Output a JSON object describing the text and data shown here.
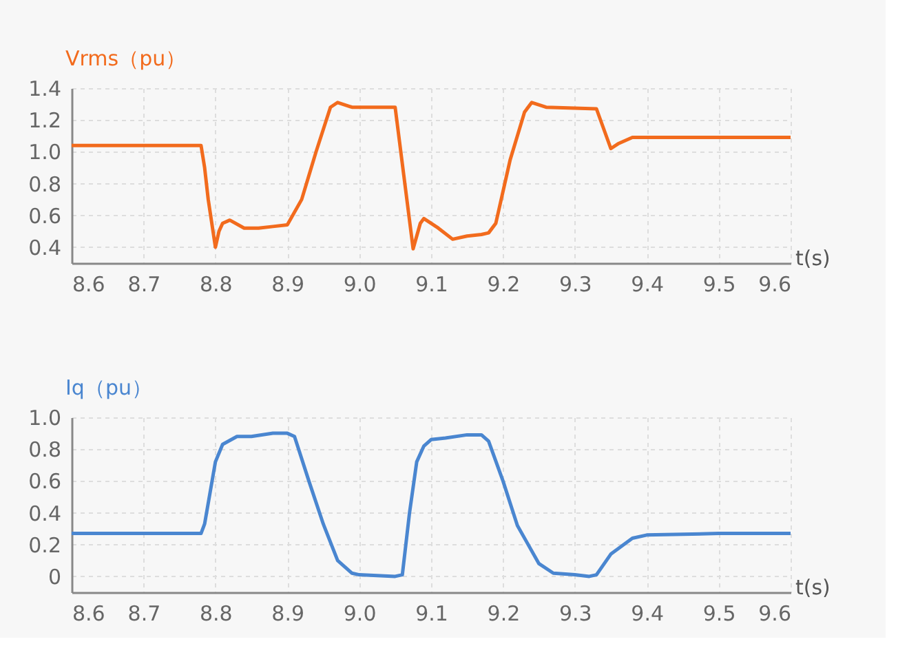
{
  "chart_data": [
    {
      "type": "line",
      "ylabel": "Vrms（pu）",
      "xlabel": "t(s)",
      "xlim": [
        8.6,
        9.6
      ],
      "xticks": [
        {
          "value": 8.6,
          "label": "8.6"
        },
        {
          "value": 8.7,
          "label": "8.7"
        },
        {
          "value": 8.8,
          "label": "8.8"
        },
        {
          "value": 8.9,
          "label": "8.9"
        },
        {
          "value": 9.0,
          "label": "9.0"
        },
        {
          "value": 9.1,
          "label": "9.1"
        },
        {
          "value": 9.2,
          "label": "9.2"
        },
        {
          "value": 9.3,
          "label": "9.3"
        },
        {
          "value": 9.4,
          "label": "9.4"
        },
        {
          "value": 9.5,
          "label": "9.5"
        },
        {
          "value": 9.6,
          "label": "9.6"
        }
      ],
      "ylim": [
        0.3,
        1.4
      ],
      "yticks": [
        {
          "value": 0.4,
          "label": "0.4"
        },
        {
          "value": 0.6,
          "label": "0.6"
        },
        {
          "value": 0.8,
          "label": "0.8"
        },
        {
          "value": 1.0,
          "label": "1.0"
        },
        {
          "value": 1.2,
          "label": "1.2"
        },
        {
          "value": 1.4,
          "label": "1.4"
        }
      ],
      "grid": true,
      "line_style": "solid",
      "marker": "none",
      "series": [
        {
          "color": "#f26b1d",
          "x": [
            8.6,
            8.78,
            8.785,
            8.79,
            8.8,
            8.805,
            8.81,
            8.82,
            8.84,
            8.86,
            8.88,
            8.9,
            8.92,
            8.94,
            8.96,
            8.97,
            8.99,
            9.05,
            9.075,
            9.085,
            9.09,
            9.11,
            9.13,
            9.15,
            9.17,
            9.18,
            9.19,
            9.21,
            9.23,
            9.24,
            9.26,
            9.33,
            9.35,
            9.36,
            9.38,
            9.6
          ],
          "values": [
            1.04,
            1.04,
            0.9,
            0.7,
            0.4,
            0.5,
            0.55,
            0.57,
            0.52,
            0.52,
            0.53,
            0.54,
            0.7,
            1.0,
            1.28,
            1.31,
            1.28,
            1.28,
            0.39,
            0.55,
            0.58,
            0.52,
            0.45,
            0.47,
            0.48,
            0.49,
            0.55,
            0.95,
            1.25,
            1.31,
            1.28,
            1.27,
            1.02,
            1.05,
            1.09,
            1.09
          ]
        }
      ]
    },
    {
      "type": "line",
      "ylabel": "Iq（pu）",
      "xlabel": "t(s)",
      "xlim": [
        8.6,
        9.6
      ],
      "xticks": [
        {
          "value": 8.6,
          "label": "8.6"
        },
        {
          "value": 8.7,
          "label": "8.7"
        },
        {
          "value": 8.8,
          "label": "8.8"
        },
        {
          "value": 8.9,
          "label": "8.9"
        },
        {
          "value": 9.0,
          "label": "9.0"
        },
        {
          "value": 9.1,
          "label": "9.1"
        },
        {
          "value": 9.2,
          "label": "9.2"
        },
        {
          "value": 9.3,
          "label": "9.3"
        },
        {
          "value": 9.4,
          "label": "9.4"
        },
        {
          "value": 9.5,
          "label": "9.5"
        },
        {
          "value": 9.6,
          "label": "9.6"
        }
      ],
      "ylim": [
        -0.1,
        1.0
      ],
      "yticks": [
        0,
        {
          "value": 0.2,
          "label": "0.2"
        },
        {
          "value": 0.4,
          "label": "0.4"
        },
        {
          "value": 0.6,
          "label": "0.6"
        },
        {
          "value": 0.8,
          "label": "0.8"
        },
        {
          "value": 1.0,
          "label": "1.0"
        }
      ],
      "grid": true,
      "line_style": "solid",
      "marker": "none",
      "series": [
        {
          "color": "#4a86d0",
          "x": [
            8.6,
            8.78,
            8.785,
            8.8,
            8.81,
            8.83,
            8.85,
            8.88,
            8.9,
            8.91,
            8.93,
            8.95,
            8.97,
            8.99,
            9.0,
            9.05,
            9.06,
            9.07,
            9.08,
            9.09,
            9.1,
            9.12,
            9.15,
            9.17,
            9.18,
            9.2,
            9.22,
            9.25,
            9.27,
            9.3,
            9.32,
            9.33,
            9.35,
            9.38,
            9.4,
            9.5,
            9.6
          ],
          "values": [
            0.27,
            0.27,
            0.33,
            0.72,
            0.83,
            0.88,
            0.88,
            0.9,
            0.9,
            0.88,
            0.6,
            0.33,
            0.1,
            0.02,
            0.01,
            0,
            0.01,
            0.4,
            0.72,
            0.82,
            0.86,
            0.87,
            0.89,
            0.89,
            0.85,
            0.6,
            0.32,
            0.08,
            0.02,
            0.01,
            0,
            0.01,
            0.14,
            0.24,
            0.26,
            0.27,
            0.27
          ]
        }
      ]
    }
  ]
}
